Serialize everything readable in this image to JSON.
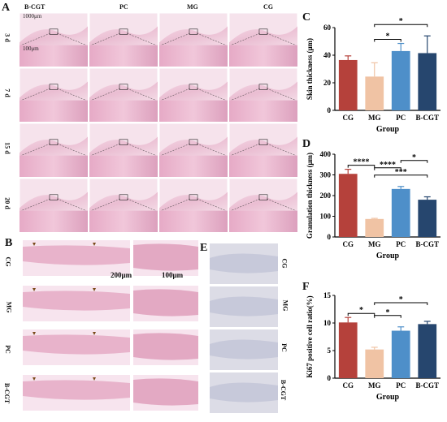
{
  "panel_a": {
    "label": "A",
    "columns": [
      "B-CGT",
      "PC",
      "MG",
      "CG"
    ],
    "rows": [
      "3 d",
      "7 d",
      "15 d",
      "20 d"
    ],
    "scale_top": "1000μm",
    "scale_bottom": "100μm"
  },
  "panel_b": {
    "label": "B",
    "rows": [
      "CG",
      "MG",
      "PC",
      "B-CGT"
    ],
    "scale_left": "200μm",
    "scale_right": "100μm"
  },
  "panel_e": {
    "label": "E",
    "rows": [
      "CG",
      "MG",
      "PC",
      "B-CGT"
    ]
  },
  "panel_c": {
    "label": "C"
  },
  "panel_d": {
    "label": "D"
  },
  "panel_f": {
    "label": "F"
  },
  "colors": {
    "CG": "#b5413b",
    "MG": "#f0c3a4",
    "PC": "#4e8fc9",
    "B-CGT": "#26466e"
  },
  "chart_data": [
    {
      "panel": "C",
      "type": "bar",
      "categories": [
        "CG",
        "MG",
        "PC",
        "B-CGT"
      ],
      "values": [
        36.5,
        24.5,
        43,
        41.5
      ],
      "errors": [
        3,
        10,
        5.5,
        12.5
      ],
      "xlabel": "Group",
      "ylabel": "Skin thickness (μm)",
      "ylim": [
        0,
        60
      ],
      "yticks": [
        0,
        20,
        40,
        60
      ],
      "significance": [
        {
          "from": "MG",
          "to": "PC",
          "label": "*"
        },
        {
          "from": "MG",
          "to": "B-CGT",
          "label": "*"
        }
      ]
    },
    {
      "panel": "D",
      "type": "bar",
      "categories": [
        "CG",
        "MG",
        "PC",
        "B-CGT"
      ],
      "values": [
        305,
        87,
        232,
        180
      ],
      "errors": [
        22,
        3,
        12,
        14
      ],
      "xlabel": "Group",
      "ylabel": "Granulation thickness (μm)",
      "ylim": [
        0,
        400
      ],
      "yticks": [
        0,
        100,
        200,
        300,
        400
      ],
      "significance": [
        {
          "from": "CG",
          "to": "MG",
          "label": "****"
        },
        {
          "from": "MG",
          "to": "B-CGT",
          "label": "***"
        },
        {
          "from": "MG",
          "to": "PC",
          "label": "****"
        },
        {
          "from": "PC",
          "to": "B-CGT",
          "label": "*"
        }
      ]
    },
    {
      "panel": "F",
      "type": "bar",
      "categories": [
        "CG",
        "MG",
        "PC",
        "B-CGT"
      ],
      "values": [
        10.1,
        5.2,
        8.6,
        9.8
      ],
      "errors": [
        0.9,
        0.4,
        0.7,
        0.5
      ],
      "xlabel": "Group",
      "ylabel": "Ki67 positive cell ratio(%)",
      "ylim": [
        0,
        15
      ],
      "yticks": [
        0,
        5,
        10,
        15
      ],
      "significance": [
        {
          "from": "CG",
          "to": "MG",
          "label": "*"
        },
        {
          "from": "MG",
          "to": "PC",
          "label": "*"
        },
        {
          "from": "MG",
          "to": "B-CGT",
          "label": "*"
        }
      ]
    }
  ]
}
